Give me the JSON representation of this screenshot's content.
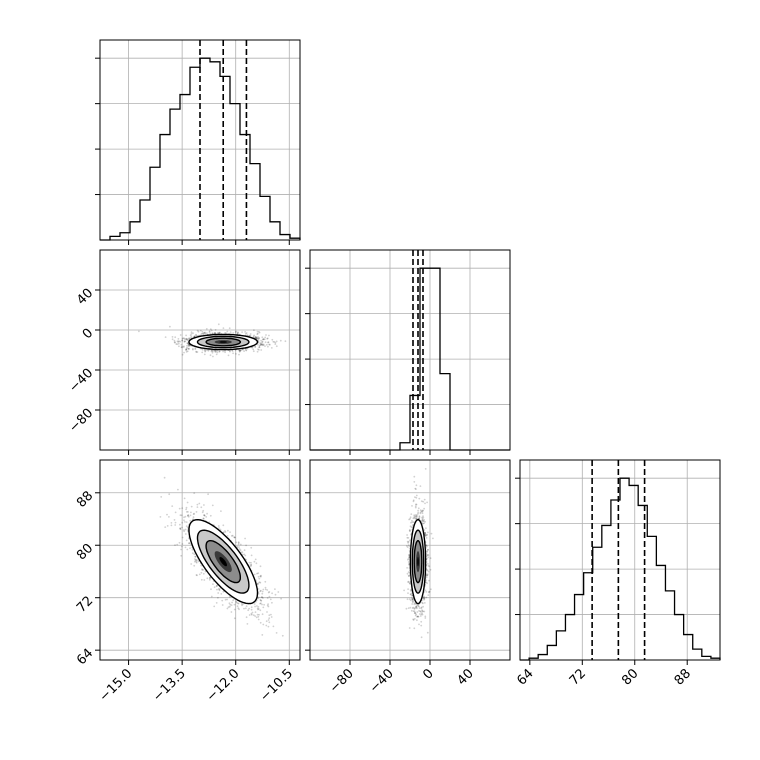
{
  "chart_data": {
    "type": "corner",
    "grid": true,
    "params": [
      {
        "range": [
          -15.8,
          -10.2
        ],
        "ticks": [
          -15.0,
          -13.5,
          -12.0,
          -10.5
        ],
        "tick_labels": [
          "−15.0",
          "−13.5",
          "−12.0",
          "−10.5"
        ],
        "quantiles": [
          -13.0,
          -12.35,
          -11.7
        ],
        "hist_counts": [
          0,
          2,
          4,
          10,
          22,
          40,
          58,
          72,
          80,
          95,
          100,
          98,
          90,
          75,
          58,
          42,
          24,
          10,
          3,
          1
        ]
      },
      {
        "range": [
          -120,
          80
        ],
        "ticks": [
          -80,
          -40,
          0,
          40
        ],
        "tick_labels": [
          "−80",
          "−40",
          "0",
          "40"
        ],
        "quantiles": [
          -17,
          -12,
          -7
        ],
        "hist_counts": [
          0,
          0,
          0,
          0,
          0,
          0,
          0,
          0,
          0,
          4,
          30,
          100,
          100,
          42,
          0,
          0,
          0,
          0,
          0,
          0
        ]
      },
      {
        "range": [
          62.5,
          93
        ],
        "ticks": [
          64,
          72,
          80,
          88
        ],
        "tick_labels": [
          "64",
          "72",
          "80",
          "88"
        ],
        "quantiles": [
          73.5,
          77.5,
          81.5
        ],
        "hist_counts": [
          0,
          1,
          3,
          8,
          16,
          25,
          36,
          48,
          62,
          74,
          88,
          100,
          96,
          85,
          68,
          52,
          38,
          25,
          14,
          6,
          2,
          1
        ]
      }
    ],
    "correlations": {
      "1_0": 0.0,
      "2_0": -0.75,
      "2_1": 0.0
    },
    "sigmas": [
      0.48,
      3.8,
      3.2
    ],
    "means": [
      -12.35,
      -12,
      77.5
    ]
  }
}
